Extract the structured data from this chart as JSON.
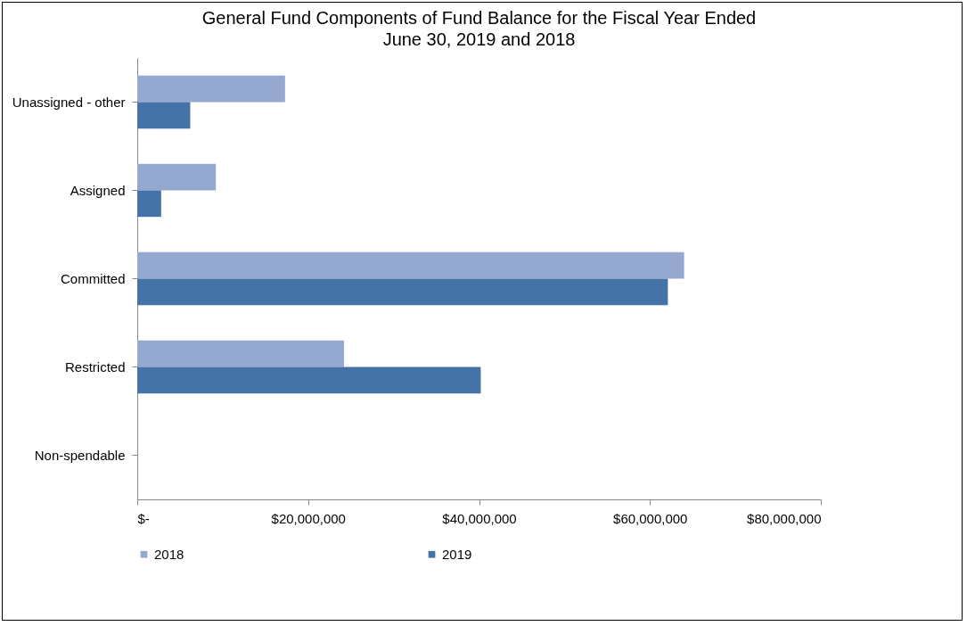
{
  "chart_data": {
    "type": "bar",
    "orientation": "horizontal",
    "title": [
      "General Fund Components of Fund Balance for the Fiscal Year Ended",
      "June 30, 2019 and 2018"
    ],
    "categories": [
      "Unassigned - other",
      "Assigned",
      "Committed",
      "Restricted",
      "Non-spendable"
    ],
    "series": [
      {
        "name": "2018",
        "color": "#95a9d0",
        "values": [
          17300000,
          9200000,
          64000000,
          24200000,
          0
        ]
      },
      {
        "name": "2019",
        "color": "#4573a7",
        "values": [
          6200000,
          2800000,
          62100000,
          40200000,
          0
        ]
      }
    ],
    "xlim": [
      0,
      80000000
    ],
    "xticks": [
      {
        "value": 0,
        "label": "$-"
      },
      {
        "value": 20000000,
        "label": "$20,000,000"
      },
      {
        "value": 40000000,
        "label": "$40,000,000"
      },
      {
        "value": 60000000,
        "label": "$60,000,000"
      },
      {
        "value": 80000000,
        "label": "$80,000,000"
      }
    ],
    "grid": false,
    "legend": "bottom"
  }
}
